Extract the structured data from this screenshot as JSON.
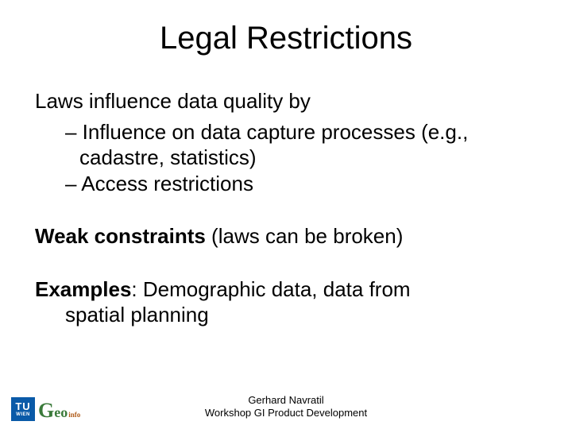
{
  "title": "Legal Restrictions",
  "intro": "Laws influence data quality by",
  "sub1": "– Influence on data capture processes (e.g., cadastre, statistics)",
  "sub2": "– Access restrictions",
  "weak_bold": "Weak constraints",
  "weak_rest": " (laws can be broken)",
  "ex_bold": "Examples",
  "ex_rest_line1": ": Demographic data, data from",
  "ex_rest_line2": "spatial planning",
  "footer1": "Gerhard Navratil",
  "footer2": "Workshop GI Product Development",
  "logo_tu": "TU",
  "logo_wien": "WIEN",
  "logo_geo_g": "G",
  "logo_geo_eo": "eo",
  "logo_geo_info": "info",
  "colors": {
    "bg": "#ffffff",
    "text": "#000000",
    "tu_blue": "#0a5aa8",
    "geo_green": "#3a7a3a",
    "geo_orange": "#b05c1a"
  },
  "fontsize": {
    "title": 40,
    "body": 26,
    "footer": 13
  }
}
